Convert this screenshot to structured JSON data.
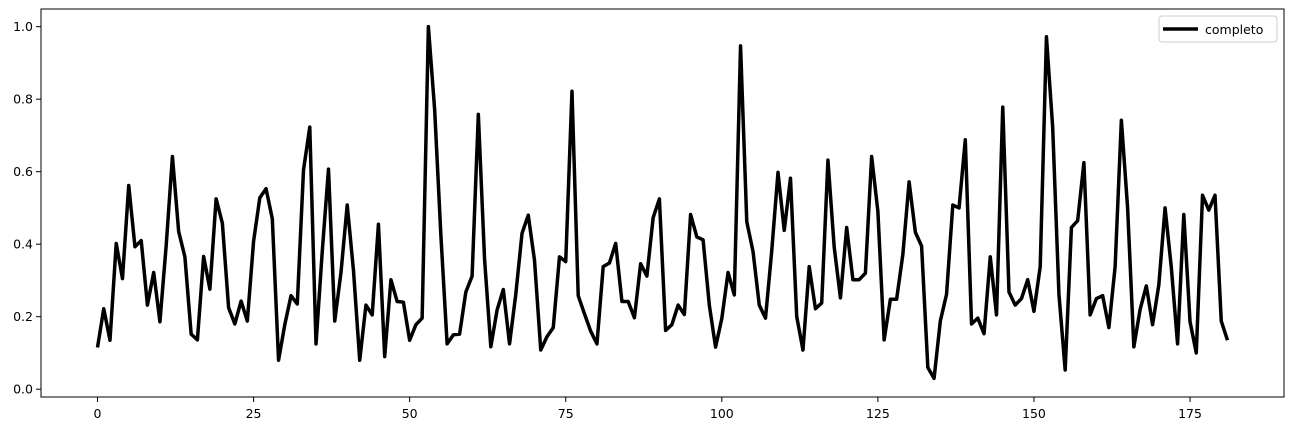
{
  "chart_data": {
    "type": "line",
    "title": "",
    "xlabel": "",
    "ylabel": "",
    "xlim": [
      -9.05,
      190.05
    ],
    "ylim": [
      -0.0215,
      1.0487
    ],
    "xticks": [
      0,
      25,
      50,
      75,
      100,
      125,
      150,
      175
    ],
    "xtick_labels": [
      "0",
      "25",
      "50",
      "75",
      "100",
      "125",
      "150",
      "175"
    ],
    "yticks": [
      0.0,
      0.2,
      0.4,
      0.6,
      0.8,
      1.0
    ],
    "ytick_labels": [
      "0.0",
      "0.2",
      "0.4",
      "0.6",
      "0.8",
      "1.0"
    ],
    "grid": false,
    "legend": {
      "location": "top-right"
    },
    "series": [
      {
        "name": "completo",
        "color": "#000000",
        "x_start": 0,
        "x_step": 1,
        "values": [
          0.115,
          0.222,
          0.135,
          0.402,
          0.305,
          0.562,
          0.393,
          0.41,
          0.232,
          0.322,
          0.186,
          0.396,
          0.642,
          0.435,
          0.365,
          0.152,
          0.136,
          0.366,
          0.276,
          0.525,
          0.458,
          0.225,
          0.18,
          0.243,
          0.188,
          0.408,
          0.528,
          0.553,
          0.47,
          0.08,
          0.178,
          0.258,
          0.235,
          0.605,
          0.723,
          0.125,
          0.38,
          0.607,
          0.188,
          0.322,
          0.508,
          0.328,
          0.08,
          0.232,
          0.205,
          0.455,
          0.09,
          0.302,
          0.242,
          0.24,
          0.135,
          0.178,
          0.196,
          1.0,
          0.772,
          0.425,
          0.125,
          0.15,
          0.152,
          0.268,
          0.312,
          0.758,
          0.358,
          0.117,
          0.218,
          0.275,
          0.125,
          0.262,
          0.43,
          0.48,
          0.355,
          0.108,
          0.145,
          0.17,
          0.365,
          0.352,
          0.822,
          0.258,
          0.208,
          0.16,
          0.125,
          0.338,
          0.348,
          0.402,
          0.242,
          0.242,
          0.197,
          0.346,
          0.312,
          0.473,
          0.525,
          0.162,
          0.178,
          0.232,
          0.206,
          0.482,
          0.42,
          0.412,
          0.232,
          0.116,
          0.195,
          0.322,
          0.26,
          0.947,
          0.462,
          0.38,
          0.232,
          0.196,
          0.382,
          0.598,
          0.438,
          0.582,
          0.2,
          0.108,
          0.338,
          0.222,
          0.238,
          0.632,
          0.392,
          0.252,
          0.446,
          0.302,
          0.302,
          0.32,
          0.642,
          0.49,
          0.136,
          0.248,
          0.248,
          0.372,
          0.572,
          0.433,
          0.395,
          0.06,
          0.03,
          0.188,
          0.262,
          0.508,
          0.5,
          0.688,
          0.18,
          0.196,
          0.153,
          0.365,
          0.205,
          0.778,
          0.268,
          0.232,
          0.25,
          0.302,
          0.215,
          0.338,
          0.972,
          0.722,
          0.262,
          0.053,
          0.446,
          0.465,
          0.625,
          0.205,
          0.25,
          0.258,
          0.17,
          0.338,
          0.742,
          0.5,
          0.117,
          0.22,
          0.285,
          0.178,
          0.288,
          0.5,
          0.336,
          0.125,
          0.482,
          0.186,
          0.1,
          0.535,
          0.494,
          0.535,
          0.188,
          0.135
        ]
      }
    ]
  }
}
